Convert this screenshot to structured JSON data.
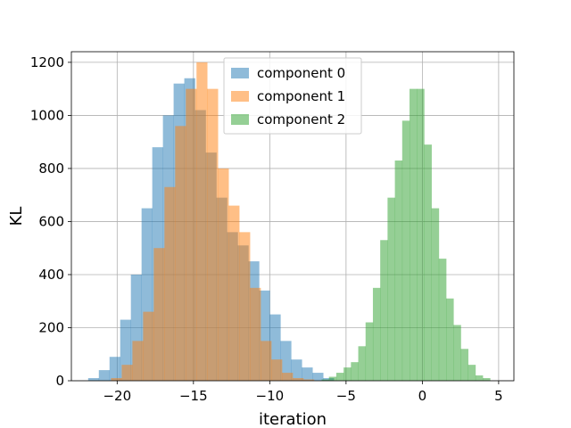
{
  "chart_data": {
    "type": "histogram",
    "xlabel": "iteration",
    "ylabel": "KL",
    "xlim": [
      -23,
      6
    ],
    "ylim": [
      0,
      1240
    ],
    "xticks": [
      -20,
      -15,
      -10,
      -5,
      0,
      5
    ],
    "xtick_labels": [
      "−20",
      "−15",
      "−10",
      "−5",
      "0",
      "5"
    ],
    "yticks": [
      0,
      200,
      400,
      600,
      800,
      1000,
      1200
    ],
    "ytick_labels": [
      "0",
      "200",
      "400",
      "600",
      "800",
      "1000",
      "1200"
    ],
    "grid": true,
    "legend_position": "upper-center",
    "series": [
      {
        "name": "component 0",
        "color": "#1f77b4",
        "opacity": 0.5,
        "bin_width": 0.7,
        "bins_left": [
          -21.9,
          -21.2,
          -20.5,
          -19.8,
          -19.1,
          -18.4,
          -17.7,
          -17.0,
          -16.3,
          -15.6,
          -14.9,
          -14.2,
          -13.5,
          -12.8,
          -12.1,
          -11.4,
          -10.7,
          -10.0,
          -9.3,
          -8.6,
          -7.9,
          -7.2,
          -6.5
        ],
        "counts": [
          10,
          40,
          90,
          230,
          400,
          650,
          880,
          1000,
          1120,
          1140,
          1020,
          860,
          690,
          560,
          510,
          450,
          340,
          250,
          150,
          80,
          50,
          30,
          10
        ]
      },
      {
        "name": "component 1",
        "color": "#ff7f0e",
        "opacity": 0.5,
        "bin_width": 0.7,
        "bins_left": [
          -20.4,
          -19.7,
          -19.0,
          -18.3,
          -17.6,
          -16.9,
          -16.2,
          -15.5,
          -14.8,
          -14.1,
          -13.4,
          -12.7,
          -12.0,
          -11.3,
          -10.6,
          -9.9,
          -9.2,
          -8.5,
          -7.8
        ],
        "counts": [
          10,
          60,
          150,
          260,
          500,
          730,
          960,
          1100,
          1200,
          1100,
          800,
          660,
          560,
          350,
          150,
          80,
          30,
          10,
          5
        ]
      },
      {
        "name": "component 2",
        "color": "#2ca02c",
        "opacity": 0.5,
        "bin_width": 0.48,
        "bins_left": [
          -6.6,
          -6.12,
          -5.64,
          -5.16,
          -4.68,
          -4.2,
          -3.72,
          -3.24,
          -2.76,
          -2.28,
          -1.8,
          -1.32,
          -0.84,
          -0.36,
          0.12,
          0.6,
          1.08,
          1.56,
          2.04,
          2.52,
          3.0,
          3.48,
          3.96
        ],
        "counts": [
          5,
          15,
          30,
          50,
          70,
          130,
          220,
          350,
          530,
          690,
          830,
          980,
          1100,
          1100,
          890,
          650,
          460,
          310,
          210,
          120,
          60,
          20,
          10
        ]
      }
    ]
  }
}
